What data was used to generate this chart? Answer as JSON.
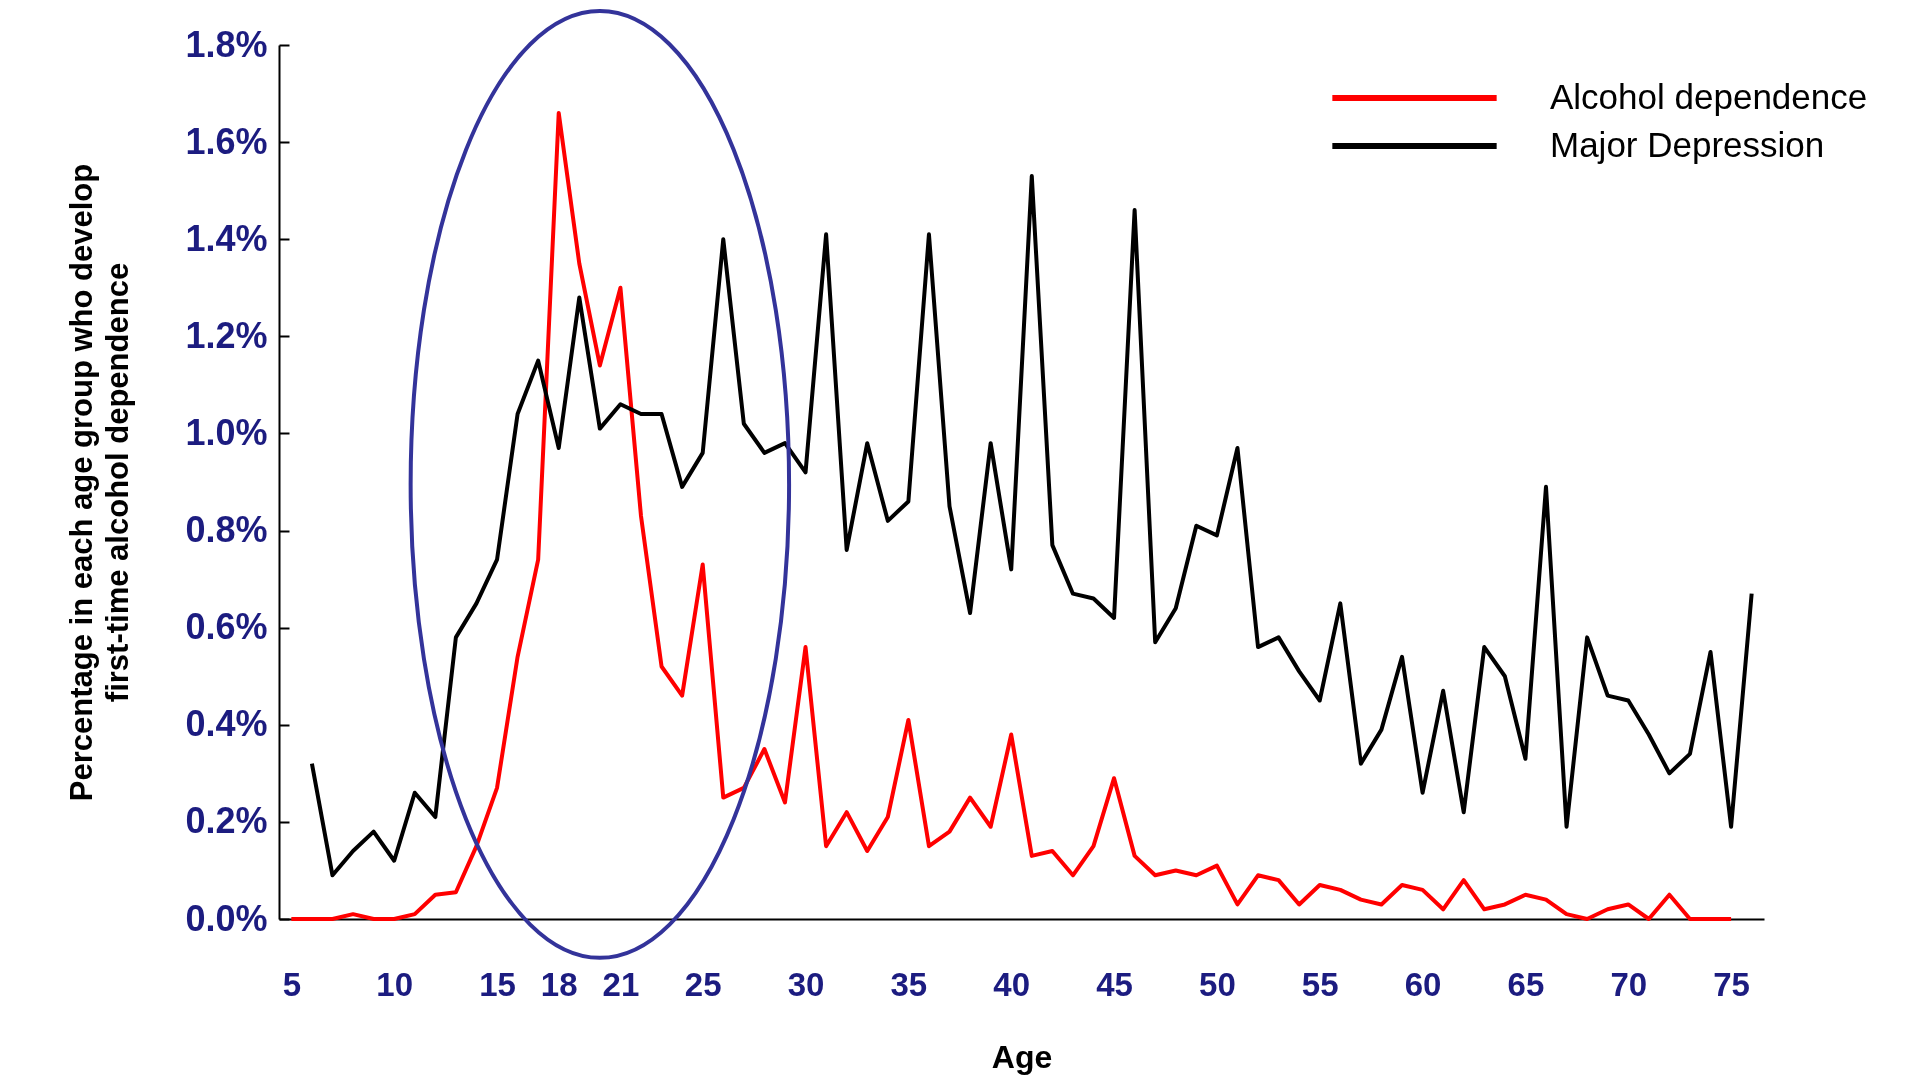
{
  "chart_data": {
    "type": "line",
    "xlabel": "Age",
    "ylabel": "Percentage in each age group who develop\nfirst-time alcohol dependence",
    "xlim": [
      4.4,
      76.6
    ],
    "xticks": [
      5,
      10,
      15,
      18,
      21,
      25,
      30,
      35,
      40,
      45,
      50,
      55,
      60,
      65,
      70,
      75
    ],
    "ylim": [
      0,
      1.8
    ],
    "yticks": [
      {
        "value": 0,
        "label": "0.0%"
      },
      {
        "value": 0.2,
        "label": "0.2%"
      },
      {
        "value": 0.4,
        "label": "0.4%"
      },
      {
        "value": 0.6,
        "label": "0.6%"
      },
      {
        "value": 0.8,
        "label": "0.8%"
      },
      {
        "value": 1.0,
        "label": "1.0%"
      },
      {
        "value": 1.2,
        "label": "1.2%"
      },
      {
        "value": 1.4,
        "label": "1.4%"
      },
      {
        "value": 1.6,
        "label": "1.6%"
      },
      {
        "value": 1.8,
        "label": "1.8%"
      }
    ],
    "grid": false,
    "legend": "top right",
    "marker": "none",
    "line_style": "solid",
    "series": [
      {
        "name": "Alcohol dependence",
        "color": "#ff0000",
        "x": [
          5,
          6,
          7,
          8,
          9,
          10,
          11,
          12,
          13,
          14,
          15,
          16,
          17,
          18,
          19,
          20,
          21,
          22,
          23,
          24,
          25,
          26,
          27,
          28,
          29,
          30,
          31,
          32,
          33,
          34,
          35,
          36,
          37,
          38,
          39,
          40,
          41,
          42,
          43,
          44,
          45,
          46,
          47,
          48,
          49,
          50,
          51,
          52,
          53,
          54,
          55,
          56,
          57,
          58,
          59,
          60,
          61,
          62,
          63,
          64,
          65,
          66,
          67,
          68,
          69,
          70,
          71,
          72,
          73,
          74,
          75
        ],
        "values": [
          0,
          0,
          0,
          0.01,
          0,
          0,
          0.01,
          0.05,
          0.055,
          0.15,
          0.27,
          0.54,
          0.74,
          1.66,
          1.35,
          1.14,
          1.3,
          0.83,
          0.52,
          0.46,
          0.73,
          0.25,
          0.27,
          0.35,
          0.24,
          0.56,
          0.15,
          0.22,
          0.14,
          0.21,
          0.41,
          0.15,
          0.18,
          0.25,
          0.19,
          0.38,
          0.13,
          0.14,
          0.09,
          0.15,
          0.29,
          0.13,
          0.09,
          0.1,
          0.09,
          0.11,
          0.03,
          0.09,
          0.08,
          0.03,
          0.07,
          0.06,
          0.04,
          0.03,
          0.07,
          0.06,
          0.02,
          0.08,
          0.02,
          0.03,
          0.05,
          0.04,
          0.01,
          0,
          0.02,
          0.03,
          0,
          0.05,
          0,
          0,
          0
        ]
      },
      {
        "name": "Major Depression",
        "color": "#000000",
        "x": [
          6,
          7,
          8,
          9,
          10,
          11,
          12,
          13,
          14,
          15,
          16,
          17,
          18,
          19,
          20,
          21,
          22,
          23,
          24,
          25,
          26,
          27,
          28,
          29,
          30,
          31,
          32,
          33,
          34,
          35,
          36,
          37,
          38,
          39,
          40,
          41,
          42,
          43,
          44,
          45,
          46,
          47,
          48,
          49,
          50,
          51,
          52,
          53,
          54,
          55,
          56,
          57,
          58,
          59,
          60,
          61,
          62,
          63,
          64,
          65,
          66,
          67,
          68,
          69,
          70,
          71,
          72,
          73,
          74,
          75,
          76
        ],
        "values": [
          0.32,
          0.09,
          0.14,
          0.18,
          0.12,
          0.26,
          0.21,
          0.58,
          0.65,
          0.74,
          1.04,
          1.15,
          0.97,
          1.28,
          1.01,
          1.06,
          1.04,
          1.04,
          0.89,
          0.96,
          1.4,
          1.02,
          0.96,
          0.98,
          0.92,
          1.41,
          0.76,
          0.98,
          0.82,
          0.86,
          1.41,
          0.85,
          0.63,
          0.98,
          0.72,
          1.53,
          0.77,
          0.67,
          0.66,
          0.62,
          1.46,
          0.57,
          0.64,
          0.81,
          0.79,
          0.97,
          0.56,
          0.58,
          0.51,
          0.45,
          0.65,
          0.32,
          0.39,
          0.54,
          0.26,
          0.47,
          0.22,
          0.56,
          0.5,
          0.33,
          0.89,
          0.19,
          0.58,
          0.46,
          0.45,
          0.38,
          0.3,
          0.34,
          0.55,
          0.19,
          0.67
        ]
      }
    ]
  }
}
